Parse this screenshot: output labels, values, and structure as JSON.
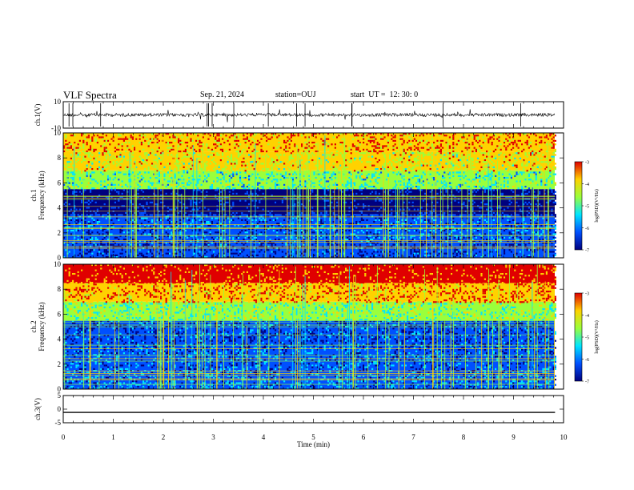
{
  "header": {
    "title": "VLF Spectra",
    "date": "Sep. 21, 2024",
    "station": "station=OUJ",
    "start": "start  UT =  12: 30: 0"
  },
  "colors": {
    "low": "#00007f",
    "mid_low": "#0050ff",
    "mid": "#00e5ff",
    "mid_high": "#9aff3c",
    "high": "#ffd200",
    "max": "#e00000"
  },
  "chart_data": [
    {
      "type": "line",
      "panel": "ch1-waveform",
      "ylabel": "ch.1(V)",
      "ylim": [
        -10,
        10
      ],
      "yticks": [
        "10",
        "-10"
      ],
      "xlim": [
        0,
        10
      ],
      "series": [
        {
          "values_description_note": "",
          "x": [
            0,
            9.83
          ],
          "y": [
            0,
            0
          ]
        }
      ]
    },
    {
      "type": "heatmap",
      "panel": "ch1-spectrogram",
      "ylabel": "ch.1\nFrequency (kHz)",
      "ylim": [
        0,
        10
      ],
      "yticks": [
        "0",
        "2",
        "4",
        "6",
        "8",
        "10"
      ],
      "xlim": [
        0,
        9.83
      ],
      "colorbar": {
        "label": "log(PSD)(V²/Hz)",
        "range": [
          -7,
          -3
        ],
        "ticks": [
          "-3",
          "-4",
          "-5",
          "-6",
          "-7"
        ]
      },
      "bands_khz": [
        {
          "from": 0,
          "to": 1.5,
          "level": -6.3
        },
        {
          "from": 1.5,
          "to": 3.5,
          "level": -6.0
        },
        {
          "from": 3.5,
          "to": 5.5,
          "level": -6.6
        },
        {
          "from": 5.5,
          "to": 7.0,
          "level": -5.0
        },
        {
          "from": 7.0,
          "to": 8.5,
          "level": -4.3
        },
        {
          "from": 8.5,
          "to": 10,
          "level": -3.8
        }
      ]
    },
    {
      "type": "heatmap",
      "panel": "ch2-spectrogram",
      "ylabel": "ch.2\nFrequency (kHz)",
      "ylim": [
        0,
        10
      ],
      "yticks": [
        "0",
        "2",
        "4",
        "6",
        "8",
        "10"
      ],
      "xlim": [
        0,
        9.83
      ],
      "colorbar": {
        "label": "log(PSD)(V²/Hz)",
        "range": [
          -7,
          -3
        ],
        "ticks": [
          "-3",
          "-4",
          "-5",
          "-6",
          "-7"
        ]
      },
      "bands_khz": [
        {
          "from": 0,
          "to": 1.5,
          "level": -5.8
        },
        {
          "from": 1.5,
          "to": 3.5,
          "level": -6.0
        },
        {
          "from": 3.5,
          "to": 5.5,
          "level": -6.2
        },
        {
          "from": 5.5,
          "to": 7.0,
          "level": -4.8
        },
        {
          "from": 7.0,
          "to": 8.5,
          "level": -3.7
        },
        {
          "from": 8.5,
          "to": 10,
          "level": -3.3
        }
      ]
    },
    {
      "type": "line",
      "panel": "ch3-waveform",
      "ylabel": "ch.3(V)",
      "ylim": [
        -5,
        5
      ],
      "yticks": [
        "5",
        "0",
        "-5"
      ],
      "xlim": [
        0,
        10
      ],
      "series": [
        {
          "x": [
            0,
            9.83
          ],
          "y": [
            -1.2,
            -1.2
          ]
        }
      ]
    }
  ],
  "xaxis": {
    "label": "Time (min)",
    "ticks": [
      "0",
      "1",
      "2",
      "3",
      "4",
      "5",
      "6",
      "7",
      "8",
      "9",
      "10"
    ]
  }
}
